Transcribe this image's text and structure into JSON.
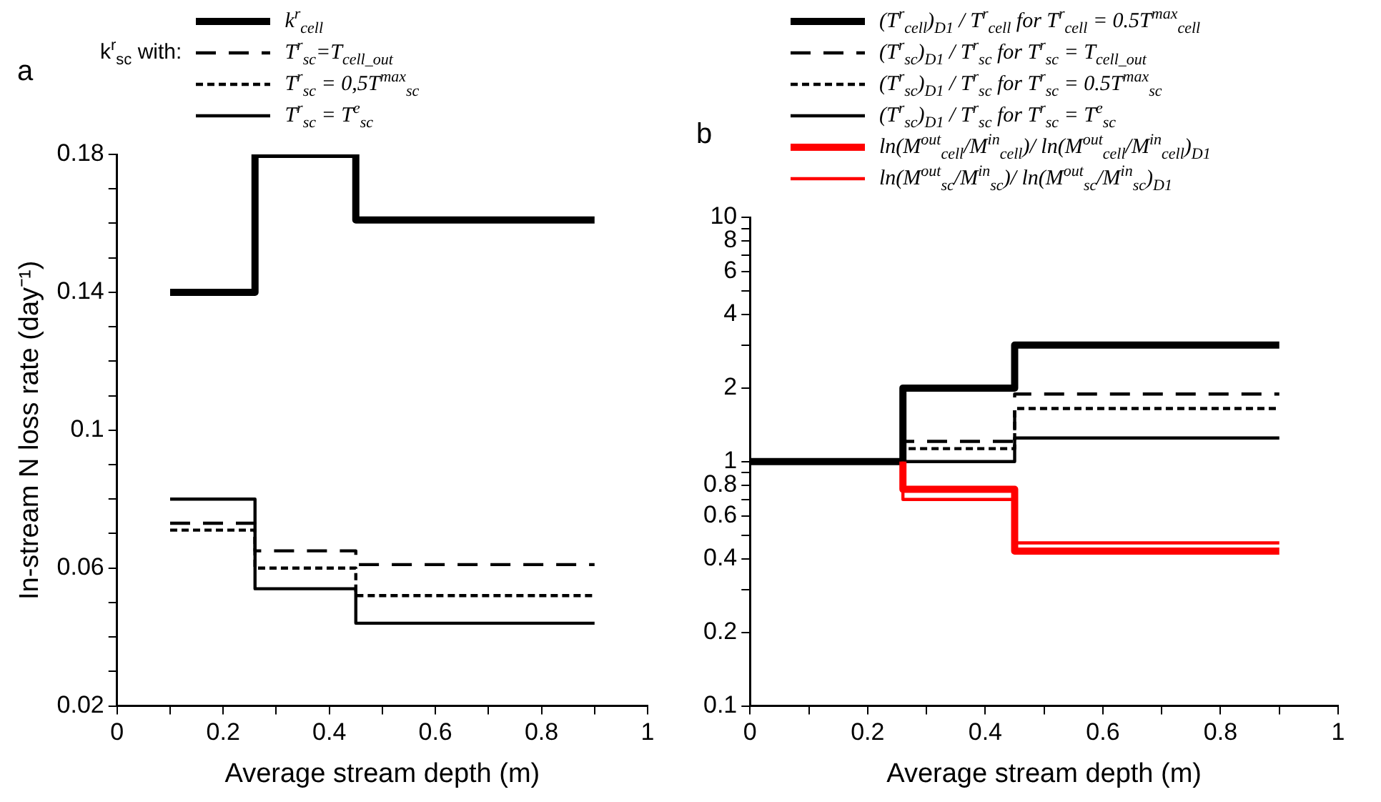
{
  "chart_data": [
    {
      "type": "step",
      "xlabel": "Average stream depth (m)",
      "ylabel": "In-stream N loss rate (day⁻¹)",
      "legend": "top",
      "legend_title": "k$^{r}$$_{sc}$ with:",
      "annotations": [
        "a"
      ],
      "marker": "none",
      "grid": false,
      "x": [
        0.1,
        0.26,
        0.45,
        0.9
      ],
      "xlim": [
        0,
        1
      ],
      "xticks": [
        0,
        {
          "value": 0.1,
          "label": null
        },
        0.2,
        {
          "value": 0.3,
          "label": null
        },
        0.4,
        {
          "value": 0.5,
          "label": null
        },
        0.6,
        {
          "value": 0.7,
          "label": null
        },
        0.8,
        {
          "value": 0.9,
          "label": null
        },
        1
      ],
      "ylim": [
        0.02,
        0.18
      ],
      "yticks": [
        0.02,
        {
          "value": 0.03,
          "label": null
        },
        {
          "value": 0.04,
          "label": null
        },
        {
          "value": 0.05,
          "label": null
        },
        0.06,
        {
          "value": 0.07,
          "label": null
        },
        {
          "value": 0.08,
          "label": null
        },
        {
          "value": 0.09,
          "label": null
        },
        0.1,
        {
          "value": 0.11,
          "label": null
        },
        {
          "value": 0.12,
          "label": null
        },
        {
          "value": 0.13,
          "label": null
        },
        0.14,
        {
          "value": 0.15,
          "label": null
        },
        {
          "value": 0.16,
          "label": null
        },
        {
          "value": 0.17,
          "label": null
        },
        0.18
      ],
      "series": [
        {
          "name": "k$^{r}$$_{cell}$",
          "color": "#000000",
          "line_style": "solid",
          "values": [
            0.14,
            0.18,
            0.161,
            0.161
          ]
        },
        {
          "name": "T$^{r}$$_{sc}$=T$_{cell_out}$",
          "color": "#000000",
          "line_style": "dashed",
          "values": [
            0.073,
            0.065,
            0.061,
            0.061
          ]
        },
        {
          "name": "T$^{r}$$_{sc}$ = 0,5T$^{max}$$_{sc}$",
          "color": "#000000",
          "line_style": "dotted",
          "values": [
            0.071,
            0.06,
            0.052,
            0.052
          ]
        },
        {
          "name": "T$^{r}$$_{sc}$ = T$^{e}$$_{sc}$",
          "color": "#000000",
          "line_style": "solid",
          "values": [
            0.08,
            0.054,
            0.044,
            0.044
          ]
        }
      ]
    },
    {
      "type": "step",
      "xlabel": "Average stream depth (m)",
      "legend": "top",
      "annotations": [
        "b"
      ],
      "marker": "none",
      "grid": false,
      "log": "y",
      "x": [
        0,
        0.26,
        0.45,
        0.9
      ],
      "xlim": [
        0,
        1
      ],
      "xticks": [
        0,
        {
          "value": 0.1,
          "label": null
        },
        0.2,
        {
          "value": 0.3,
          "label": null
        },
        0.4,
        {
          "value": 0.5,
          "label": null
        },
        0.6,
        {
          "value": 0.7,
          "label": null
        },
        0.8,
        {
          "value": 0.9,
          "label": null
        },
        1
      ],
      "ylim": [
        0.1,
        10
      ],
      "yticks": [
        0.1,
        0.2,
        {
          "value": 0.3,
          "label": null
        },
        0.4,
        {
          "value": 0.5,
          "label": null
        },
        0.6,
        {
          "value": 0.7,
          "label": null
        },
        0.8,
        {
          "value": 0.9,
          "label": null
        },
        1,
        2,
        {
          "value": 3,
          "label": null
        },
        4,
        {
          "value": 5,
          "label": null
        },
        6,
        {
          "value": 7,
          "label": null
        },
        8,
        {
          "value": 9,
          "label": null
        },
        10
      ],
      "series": [
        {
          "name": "(T$^{r}$$_{cell}$)$_{D1}$ / T$^{r}$$_{cell}$ for T$^{r}$$_{cell}$ = 0.5T$^{max}$$_{cell}$",
          "color": "#000000",
          "line_style": "solid",
          "values": [
            1,
            2,
            3,
            3
          ]
        },
        {
          "name": "(T$^{r}$$_{sc}$)$_{D1}$ / T$^{r}$$_{sc}$ for T$^{r}$$_{sc}$ = T$_{cell_out}$",
          "color": "#000000",
          "line_style": "dashed",
          "values": [
            1,
            1.21,
            1.89,
            1.89
          ]
        },
        {
          "name": "(T$^{r}$$_{sc}$)$_{D1}$ / T$^{r}$$_{sc}$ for T$^{r}$$_{sc}$ = 0.5T$^{max}$$_{sc}$",
          "color": "#000000",
          "line_style": "dotted",
          "values": [
            1,
            1.13,
            1.65,
            1.65
          ]
        },
        {
          "name": "(T$^{r}$$_{sc}$)$_{D1}$ / T$^{r}$$_{sc}$ for T$^{r}$$_{sc}$ = T$^{e}$$_{sc}$",
          "color": "#000000",
          "line_style": "solid",
          "values": [
            1,
            1,
            1.25,
            1.25
          ]
        },
        {
          "name": "ln(M$^{out}$$_{cell}$/M$^{in}$$_{cell}$)/ ln(M$^{out}$$_{cell}$/M$^{in}$$_{cell}$)$_{D1}$",
          "color": "#ff0000",
          "line_style": "solid",
          "x": [
            0.26,
            0.26,
            0.45,
            0.9
          ],
          "values": [
            1,
            0.77,
            0.43,
            0.43
          ]
        },
        {
          "name": "ln(M$^{out}$$_{sc}$/M$^{in}$$_{sc}$)/ ln(M$^{out}$$_{sc}$/M$^{in}$$_{sc}$)$_{D1}$",
          "color": "#ff0000",
          "line_style": "solid",
          "x": [
            0.26,
            0.26,
            0.45,
            0.9
          ],
          "values": [
            1,
            0.7,
            0.465,
            0.465
          ]
        }
      ]
    }
  ]
}
